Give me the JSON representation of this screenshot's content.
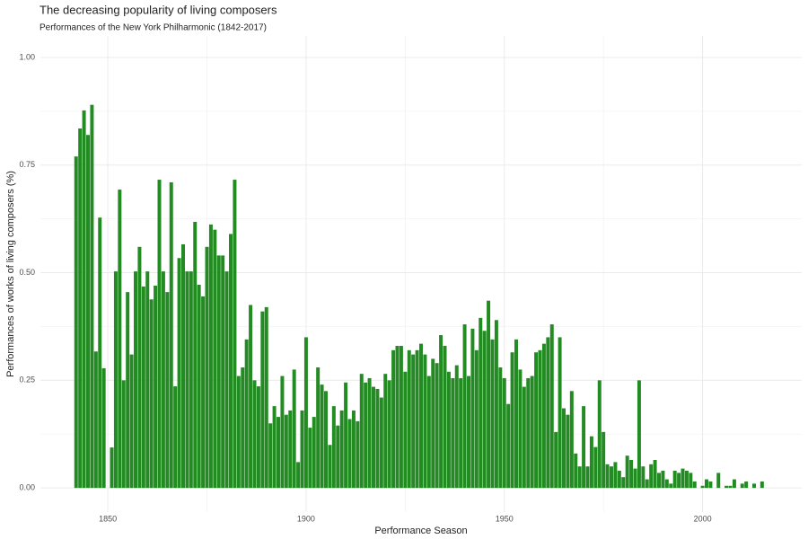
{
  "chart_data": {
    "type": "bar",
    "title": "The decreasing popularity of living composers",
    "subtitle": "Performances of the New York Philharmonic (1842-2017)",
    "x_label": "Performance Season",
    "y_label": "Performances of works of living composers (%)",
    "color": "#228b22",
    "grid": true,
    "xlim": [
      1833,
      2025
    ],
    "ylim": [
      -0.056,
      1.05
    ],
    "xticks": [
      1850,
      1900,
      1950,
      2000
    ],
    "yticks": [
      {
        "value": 0,
        "label": "0.00"
      },
      {
        "value": 0.25,
        "label": "0.25"
      },
      {
        "value": 0.5,
        "label": "0.50"
      },
      {
        "value": 0.75,
        "label": "0.75"
      },
      {
        "value": 1,
        "label": "1.00"
      }
    ],
    "x": [
      1842,
      1843,
      1844,
      1845,
      1846,
      1847,
      1848,
      1849,
      1850,
      1851,
      1852,
      1853,
      1854,
      1855,
      1856,
      1857,
      1858,
      1859,
      1860,
      1861,
      1862,
      1863,
      1864,
      1865,
      1866,
      1867,
      1868,
      1869,
      1870,
      1871,
      1872,
      1873,
      1874,
      1875,
      1876,
      1877,
      1878,
      1879,
      1880,
      1881,
      1882,
      1883,
      1884,
      1885,
      1886,
      1887,
      1888,
      1889,
      1890,
      1891,
      1892,
      1893,
      1894,
      1895,
      1896,
      1897,
      1898,
      1899,
      1900,
      1901,
      1902,
      1903,
      1904,
      1905,
      1906,
      1907,
      1908,
      1909,
      1910,
      1911,
      1912,
      1913,
      1914,
      1915,
      1916,
      1917,
      1918,
      1919,
      1920,
      1921,
      1922,
      1923,
      1924,
      1925,
      1926,
      1927,
      1928,
      1929,
      1930,
      1931,
      1932,
      1933,
      1934,
      1935,
      1936,
      1937,
      1938,
      1939,
      1940,
      1941,
      1942,
      1943,
      1944,
      1945,
      1946,
      1947,
      1948,
      1949,
      1950,
      1951,
      1952,
      1953,
      1954,
      1955,
      1956,
      1957,
      1958,
      1959,
      1960,
      1961,
      1962,
      1963,
      1964,
      1965,
      1966,
      1967,
      1968,
      1969,
      1970,
      1971,
      1972,
      1973,
      1974,
      1975,
      1976,
      1977,
      1978,
      1979,
      1980,
      1981,
      1982,
      1983,
      1984,
      1985,
      1986,
      1987,
      1988,
      1989,
      1990,
      1991,
      1992,
      1993,
      1994,
      1995,
      1996,
      1997,
      1998,
      1999,
      2000,
      2001,
      2002,
      2003,
      2004,
      2005,
      2006,
      2007,
      2008,
      2009,
      2010,
      2011,
      2012,
      2013,
      2014,
      2015
    ],
    "values": [
      0.77,
      0.835,
      0.877,
      0.82,
      0.89,
      0.317,
      0.628,
      0.278,
      0,
      0.094,
      0.503,
      0.693,
      0.25,
      0.455,
      0.31,
      0.503,
      0.56,
      0.468,
      0.503,
      0.438,
      0.47,
      0.716,
      0.503,
      0.455,
      0.71,
      0.236,
      0.534,
      0.566,
      0.503,
      0.503,
      0.618,
      0.472,
      0.445,
      0.56,
      0.612,
      0.6,
      0.54,
      0.54,
      0.503,
      0.59,
      0.716,
      0.26,
      0.28,
      0.345,
      0.425,
      0.25,
      0.236,
      0.41,
      0.42,
      0.15,
      0.19,
      0.165,
      0.26,
      0.17,
      0.18,
      0.275,
      0.06,
      0.18,
      0.35,
      0.14,
      0.165,
      0.28,
      0.24,
      0.225,
      0.1,
      0.19,
      0.145,
      0.18,
      0.245,
      0.16,
      0.18,
      0.155,
      0.265,
      0.245,
      0.255,
      0.235,
      0.23,
      0.21,
      0.265,
      0.25,
      0.32,
      0.33,
      0.33,
      0.27,
      0.32,
      0.31,
      0.32,
      0.335,
      0.31,
      0.26,
      0.3,
      0.29,
      0.355,
      0.33,
      0.27,
      0.255,
      0.285,
      0.255,
      0.38,
      0.26,
      0.37,
      0.32,
      0.395,
      0.365,
      0.435,
      0.345,
      0.39,
      0.28,
      0.255,
      0.195,
      0.315,
      0.345,
      0.275,
      0.235,
      0.255,
      0.26,
      0.315,
      0.32,
      0.335,
      0.35,
      0.38,
      0.13,
      0.35,
      0.185,
      0.17,
      0.225,
      0.08,
      0.05,
      0.19,
      0.05,
      0.12,
      0.095,
      0.25,
      0.13,
      0.055,
      0.05,
      0.06,
      0.04,
      0.025,
      0.075,
      0.065,
      0.045,
      0.25,
      0.05,
      0.02,
      0.055,
      0.065,
      0.035,
      0.04,
      0.02,
      0.01,
      0.04,
      0.035,
      0.045,
      0.04,
      0.035,
      0.015,
      0,
      0.005,
      0.02,
      0.015,
      0,
      0.035,
      0,
      0.005,
      0.005,
      0.02,
      0,
      0.01,
      0.015,
      0,
      0.01,
      0,
      0.015
    ]
  }
}
